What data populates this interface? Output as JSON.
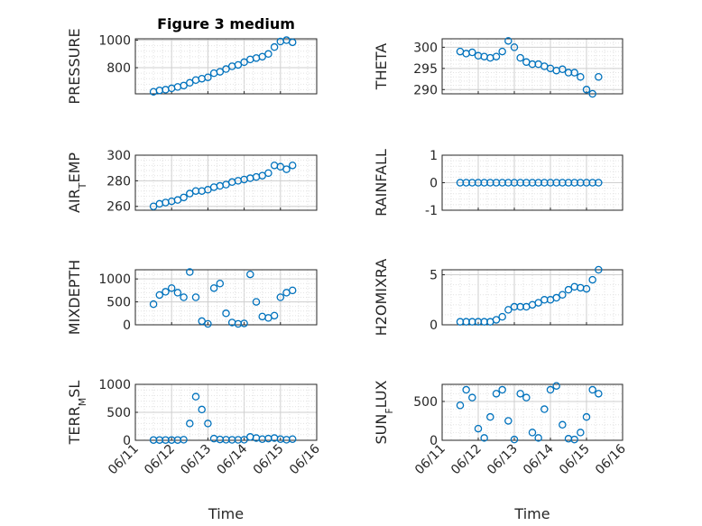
{
  "chart_data": [
    {
      "type": "scatter",
      "title": "Figure 3 medium",
      "ylabel": "PRESSURE",
      "xlabel": "",
      "ylim": [
        610,
        1010
      ],
      "yticks": [
        800,
        1000
      ],
      "xlim": [
        "06/11",
        "06/16"
      ],
      "grid": true,
      "marker_color": "#0072BD",
      "x": [
        "06/11 12:00",
        "06/11 16:00",
        "06/11 20:00",
        "06/12 00:00",
        "06/12 04:00",
        "06/12 08:00",
        "06/12 12:00",
        "06/12 16:00",
        "06/12 20:00",
        "06/13 00:00",
        "06/13 04:00",
        "06/13 08:00",
        "06/13 12:00",
        "06/13 16:00",
        "06/13 20:00",
        "06/14 00:00",
        "06/14 04:00",
        "06/14 08:00",
        "06/14 12:00",
        "06/14 16:00",
        "06/14 20:00",
        "06/15 00:00",
        "06/15 04:00",
        "06/15 08:00"
      ],
      "y": [
        625,
        635,
        640,
        650,
        660,
        670,
        690,
        710,
        720,
        730,
        760,
        770,
        790,
        810,
        820,
        840,
        860,
        870,
        880,
        900,
        950,
        990,
        1000,
        985
      ]
    },
    {
      "type": "scatter",
      "title": "",
      "ylabel": "THETA",
      "xlabel": "",
      "ylim": [
        289,
        302
      ],
      "yticks": [
        290,
        295,
        300
      ],
      "xlim": [
        "06/11",
        "06/16"
      ],
      "grid": true,
      "marker_color": "#0072BD",
      "x": [
        "06/11 12:00",
        "06/11 16:00",
        "06/11 20:00",
        "06/12 00:00",
        "06/12 04:00",
        "06/12 08:00",
        "06/12 12:00",
        "06/12 16:00",
        "06/12 20:00",
        "06/13 00:00",
        "06/13 04:00",
        "06/13 08:00",
        "06/13 12:00",
        "06/13 16:00",
        "06/13 20:00",
        "06/14 00:00",
        "06/14 04:00",
        "06/14 08:00",
        "06/14 12:00",
        "06/14 16:00",
        "06/14 20:00",
        "06/15 00:00",
        "06/15 04:00",
        "06/15 08:00"
      ],
      "y": [
        299,
        298.5,
        298.8,
        298,
        297.8,
        297.5,
        297.8,
        299,
        301.5,
        300,
        297.5,
        296.5,
        296,
        296,
        295.5,
        295,
        294.5,
        294.8,
        294,
        294,
        293,
        290,
        289,
        293
      ]
    },
    {
      "type": "scatter",
      "title": "",
      "ylabel_main": "AIR",
      "ylabel_sub": "T",
      "ylabel_rest": "EMP",
      "xlabel": "",
      "ylim": [
        257,
        300
      ],
      "yticks": [
        260,
        280,
        300
      ],
      "xlim": [
        "06/11",
        "06/16"
      ],
      "grid": true,
      "marker_color": "#0072BD",
      "x": [
        "06/11 12:00",
        "06/11 16:00",
        "06/11 20:00",
        "06/12 00:00",
        "06/12 04:00",
        "06/12 08:00",
        "06/12 12:00",
        "06/12 16:00",
        "06/12 20:00",
        "06/13 00:00",
        "06/13 04:00",
        "06/13 08:00",
        "06/13 12:00",
        "06/13 16:00",
        "06/13 20:00",
        "06/14 00:00",
        "06/14 04:00",
        "06/14 08:00",
        "06/14 12:00",
        "06/14 16:00",
        "06/14 20:00",
        "06/15 00:00",
        "06/15 04:00",
        "06/15 08:00"
      ],
      "y": [
        260,
        262,
        263,
        264,
        265,
        267,
        270,
        272,
        272,
        273,
        275,
        276,
        277,
        279,
        280,
        281,
        282,
        283,
        284,
        286,
        292,
        291,
        289,
        292
      ]
    },
    {
      "type": "scatter",
      "title": "",
      "ylabel": "RAINFALL",
      "xlabel": "",
      "ylim": [
        -1,
        1
      ],
      "yticks": [
        -1,
        0,
        1
      ],
      "xlim": [
        "06/11",
        "06/16"
      ],
      "grid": true,
      "marker_color": "#0072BD",
      "x": [
        "06/11 12:00",
        "06/11 16:00",
        "06/11 20:00",
        "06/12 00:00",
        "06/12 04:00",
        "06/12 08:00",
        "06/12 12:00",
        "06/12 16:00",
        "06/12 20:00",
        "06/13 00:00",
        "06/13 04:00",
        "06/13 08:00",
        "06/13 12:00",
        "06/13 16:00",
        "06/13 20:00",
        "06/14 00:00",
        "06/14 04:00",
        "06/14 08:00",
        "06/14 12:00",
        "06/14 16:00",
        "06/14 20:00",
        "06/15 00:00",
        "06/15 04:00",
        "06/15 08:00"
      ],
      "y": [
        0,
        0,
        0,
        0,
        0,
        0,
        0,
        0,
        0,
        0,
        0,
        0,
        0,
        0,
        0,
        0,
        0,
        0,
        0,
        0,
        0,
        0,
        0,
        0
      ]
    },
    {
      "type": "scatter",
      "title": "",
      "ylabel": "MIXDEPTH",
      "xlabel": "",
      "ylim": [
        0,
        1200
      ],
      "yticks": [
        0,
        500,
        1000
      ],
      "xlim": [
        "06/11",
        "06/16"
      ],
      "grid": true,
      "marker_color": "#0072BD",
      "x": [
        "06/11 12:00",
        "06/11 16:00",
        "06/11 20:00",
        "06/12 00:00",
        "06/12 04:00",
        "06/12 08:00",
        "06/12 12:00",
        "06/12 16:00",
        "06/12 20:00",
        "06/13 00:00",
        "06/13 04:00",
        "06/13 08:00",
        "06/13 12:00",
        "06/13 16:00",
        "06/13 20:00",
        "06/14 00:00",
        "06/14 04:00",
        "06/14 08:00",
        "06/14 12:00",
        "06/14 16:00",
        "06/14 20:00",
        "06/15 00:00",
        "06/15 04:00",
        "06/15 08:00"
      ],
      "y": [
        450,
        650,
        720,
        800,
        700,
        600,
        1150,
        600,
        80,
        20,
        800,
        900,
        250,
        50,
        20,
        30,
        1100,
        500,
        180,
        150,
        200,
        600,
        700,
        750
      ]
    },
    {
      "type": "scatter",
      "title": "",
      "ylabel": "H2OMIXRA",
      "xlabel": "",
      "ylim": [
        0,
        5.5
      ],
      "yticks": [
        0,
        5
      ],
      "xlim": [
        "06/11",
        "06/16"
      ],
      "grid": true,
      "marker_color": "#0072BD",
      "x": [
        "06/11 12:00",
        "06/11 16:00",
        "06/11 20:00",
        "06/12 00:00",
        "06/12 04:00",
        "06/12 08:00",
        "06/12 12:00",
        "06/12 16:00",
        "06/12 20:00",
        "06/13 00:00",
        "06/13 04:00",
        "06/13 08:00",
        "06/13 12:00",
        "06/13 16:00",
        "06/13 20:00",
        "06/14 00:00",
        "06/14 04:00",
        "06/14 08:00",
        "06/14 12:00",
        "06/14 16:00",
        "06/14 20:00",
        "06/15 00:00",
        "06/15 04:00",
        "06/15 08:00"
      ],
      "y": [
        0.3,
        0.3,
        0.3,
        0.3,
        0.3,
        0.3,
        0.5,
        0.8,
        1.5,
        1.8,
        1.8,
        1.8,
        2.0,
        2.2,
        2.5,
        2.5,
        2.7,
        3.0,
        3.5,
        3.8,
        3.7,
        3.6,
        4.5,
        5.5
      ]
    },
    {
      "type": "scatter",
      "title": "",
      "ylabel_main": "TERR",
      "ylabel_sub": "M",
      "ylabel_rest": "SL",
      "xlabel": "Time",
      "ylim": [
        0,
        1000
      ],
      "yticks": [
        0,
        500,
        1000
      ],
      "xlim": [
        "06/11",
        "06/16"
      ],
      "xticks": [
        "06/11",
        "06/12",
        "06/13",
        "06/14",
        "06/15",
        "06/16"
      ],
      "grid": true,
      "marker_color": "#0072BD",
      "x": [
        "06/11 12:00",
        "06/11 16:00",
        "06/11 20:00",
        "06/12 00:00",
        "06/12 04:00",
        "06/12 08:00",
        "06/12 12:00",
        "06/12 16:00",
        "06/12 20:00",
        "06/13 00:00",
        "06/13 04:00",
        "06/13 08:00",
        "06/13 12:00",
        "06/13 16:00",
        "06/13 20:00",
        "06/14 00:00",
        "06/14 04:00",
        "06/14 08:00",
        "06/14 12:00",
        "06/14 16:00",
        "06/14 20:00",
        "06/15 00:00",
        "06/15 04:00",
        "06/15 08:00"
      ],
      "y": [
        5,
        5,
        5,
        5,
        5,
        10,
        300,
        780,
        550,
        300,
        30,
        15,
        10,
        8,
        8,
        10,
        60,
        40,
        20,
        30,
        40,
        20,
        10,
        20
      ]
    },
    {
      "type": "scatter",
      "title": "",
      "ylabel_main": "SUN",
      "ylabel_sub": "F",
      "ylabel_rest": "LUX",
      "xlabel": "Time",
      "ylim": [
        0,
        720
      ],
      "yticks": [
        0,
        500
      ],
      "xlim": [
        "06/11",
        "06/16"
      ],
      "xticks": [
        "06/11",
        "06/12",
        "06/13",
        "06/14",
        "06/15",
        "06/16"
      ],
      "grid": true,
      "marker_color": "#0072BD",
      "x": [
        "06/11 12:00",
        "06/11 16:00",
        "06/11 20:00",
        "06/12 00:00",
        "06/12 04:00",
        "06/12 08:00",
        "06/12 12:00",
        "06/12 16:00",
        "06/12 20:00",
        "06/13 00:00",
        "06/13 04:00",
        "06/13 08:00",
        "06/13 12:00",
        "06/13 16:00",
        "06/13 20:00",
        "06/14 00:00",
        "06/14 04:00",
        "06/14 08:00",
        "06/14 12:00",
        "06/14 16:00",
        "06/14 20:00",
        "06/15 00:00",
        "06/15 04:00",
        "06/15 08:00"
      ],
      "y": [
        450,
        650,
        550,
        150,
        30,
        300,
        600,
        650,
        250,
        10,
        600,
        550,
        100,
        30,
        400,
        650,
        700,
        200,
        20,
        10,
        100,
        300,
        650,
        600
      ]
    }
  ]
}
